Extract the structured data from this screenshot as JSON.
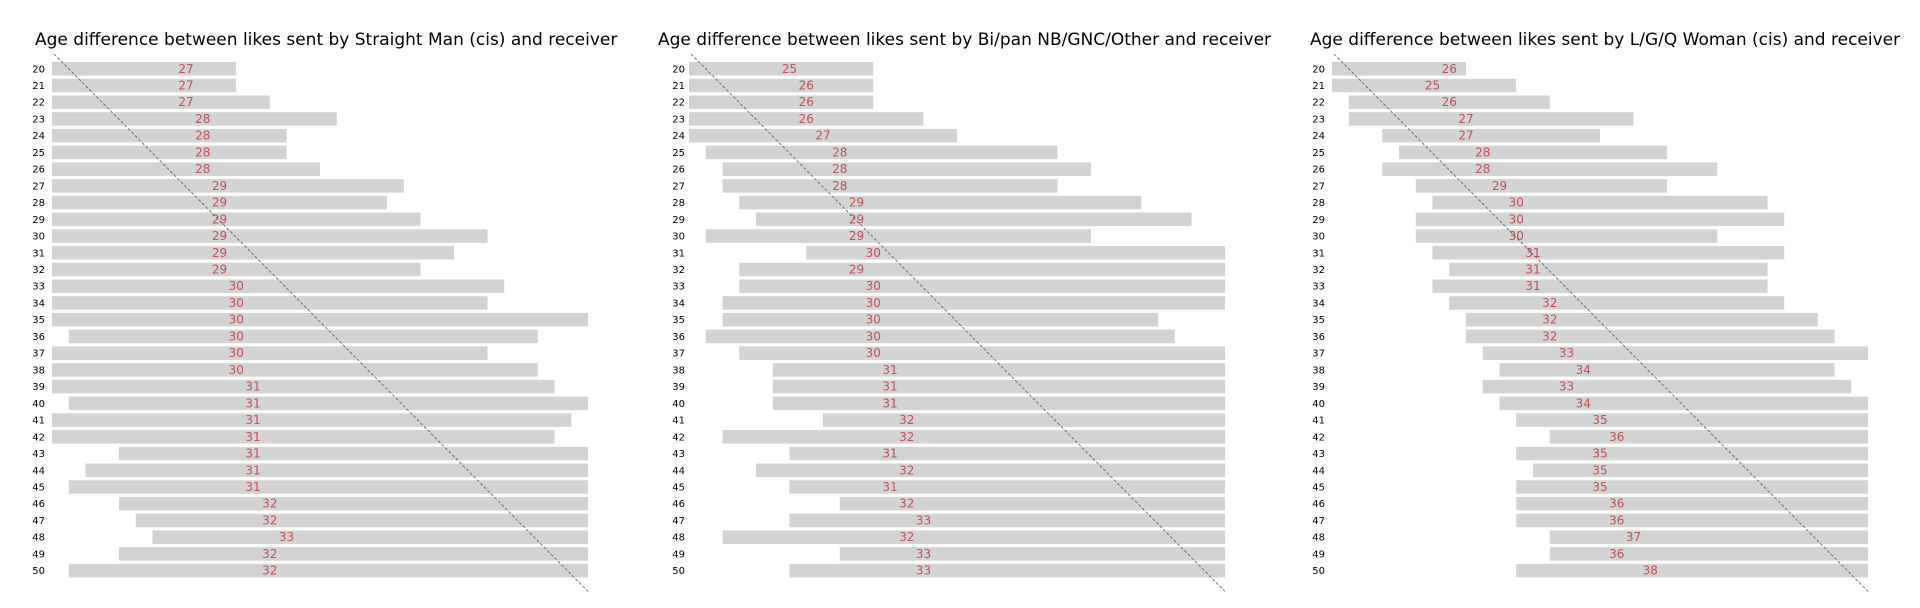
{
  "colors": {
    "bar": "#d3d3d3",
    "median_label": "#c44e52",
    "diagonal": "#555555"
  },
  "chart_data": [
    {
      "type": "bar",
      "orientation": "horizontal",
      "title": "Age difference between likes sent by Straight Man (cis) and receiver",
      "ages": [
        20,
        21,
        22,
        23,
        24,
        25,
        26,
        27,
        28,
        29,
        30,
        31,
        32,
        33,
        34,
        35,
        36,
        37,
        38,
        39,
        40,
        41,
        42,
        43,
        44,
        45,
        46,
        47,
        48,
        49,
        50
      ],
      "xlim": [
        19,
        51
      ],
      "diagonal": true,
      "series": [
        {
          "key": "low",
          "values": [
            19,
            19,
            19,
            19,
            19,
            19,
            19,
            19,
            19,
            19,
            19,
            19,
            19,
            19,
            19,
            19,
            20,
            19,
            19,
            19,
            20,
            19,
            19,
            23,
            21,
            20,
            23,
            24,
            25,
            23,
            20
          ]
        },
        {
          "key": "high",
          "values": [
            30,
            30,
            32,
            36,
            33,
            33,
            35,
            40,
            39,
            41,
            45,
            43,
            41,
            46,
            45,
            51,
            48,
            45,
            48,
            49,
            51,
            50,
            49,
            51,
            51,
            51,
            51,
            51,
            51,
            51,
            51
          ]
        },
        {
          "key": "median",
          "values": [
            27,
            27,
            27,
            28,
            28,
            28,
            28,
            29,
            29,
            29,
            29,
            29,
            29,
            30,
            30,
            30,
            30,
            30,
            30,
            31,
            31,
            31,
            31,
            31,
            31,
            31,
            32,
            32,
            33,
            32,
            32
          ]
        }
      ]
    },
    {
      "type": "bar",
      "orientation": "horizontal",
      "title": "Age difference between likes sent by Bi/pan NB/GNC/Other and receiver",
      "ages": [
        20,
        21,
        22,
        23,
        24,
        25,
        26,
        27,
        28,
        29,
        30,
        31,
        32,
        33,
        34,
        35,
        36,
        37,
        38,
        39,
        40,
        41,
        42,
        43,
        44,
        45,
        46,
        47,
        48,
        49,
        50
      ],
      "xlim": [
        19,
        51
      ],
      "diagonal": true,
      "series": [
        {
          "key": "low",
          "values": [
            19,
            19,
            19,
            19,
            19,
            20,
            21,
            21,
            22,
            23,
            20,
            26,
            22,
            22,
            21,
            21,
            20,
            22,
            24,
            24,
            24,
            27,
            21,
            25,
            23,
            25,
            28,
            25,
            21,
            28,
            25
          ]
        },
        {
          "key": "high",
          "values": [
            30,
            30,
            30,
            33,
            35,
            41,
            43,
            41,
            46,
            49,
            43,
            51,
            51,
            51,
            51,
            47,
            48,
            51,
            51,
            51,
            51,
            51,
            51,
            51,
            51,
            51,
            51,
            51,
            51,
            51,
            51
          ]
        },
        {
          "key": "median",
          "values": [
            25,
            26,
            26,
            26,
            27,
            28,
            28,
            28,
            29,
            29,
            29,
            30,
            29,
            30,
            30,
            30,
            30,
            30,
            31,
            31,
            31,
            32,
            32,
            31,
            32,
            31,
            32,
            33,
            32,
            33,
            33
          ]
        }
      ]
    },
    {
      "type": "bar",
      "orientation": "horizontal",
      "title": "Age difference between likes sent by L/G/Q Woman (cis) and receiver",
      "ages": [
        20,
        21,
        22,
        23,
        24,
        25,
        26,
        27,
        28,
        29,
        30,
        31,
        32,
        33,
        34,
        35,
        36,
        37,
        38,
        39,
        40,
        41,
        42,
        43,
        44,
        45,
        46,
        47,
        48,
        49,
        50
      ],
      "xlim": [
        19,
        51
      ],
      "diagonal": true,
      "series": [
        {
          "key": "low",
          "values": [
            19,
            19,
            20,
            20,
            22,
            23,
            22,
            24,
            25,
            24,
            24,
            25,
            26,
            25,
            26,
            27,
            27,
            28,
            29,
            28,
            29,
            30,
            32,
            30,
            31,
            30,
            30,
            30,
            32,
            32,
            30
          ]
        },
        {
          "key": "high",
          "values": [
            27,
            30,
            32,
            37,
            35,
            39,
            42,
            39,
            45,
            46,
            42,
            46,
            45,
            45,
            46,
            48,
            49,
            51,
            49,
            50,
            51,
            51,
            51,
            51,
            51,
            51,
            51,
            51,
            51,
            51,
            51
          ]
        },
        {
          "key": "median",
          "values": [
            26,
            25,
            26,
            27,
            27,
            28,
            28,
            29,
            30,
            30,
            30,
            31,
            31,
            31,
            32,
            32,
            32,
            33,
            34,
            33,
            34,
            35,
            36,
            35,
            35,
            35,
            36,
            36,
            37,
            36,
            38
          ]
        }
      ]
    }
  ]
}
